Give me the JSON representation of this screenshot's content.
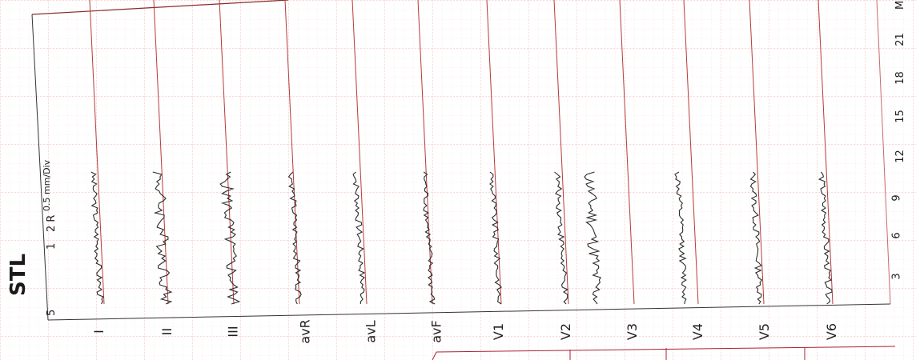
{
  "report": {
    "title": "STL",
    "scale_text": "0.5 mm/Div",
    "marks": [
      "5",
      "1",
      "2 R"
    ]
  },
  "leads": [
    "I",
    "II",
    "III",
    "avR",
    "avL",
    "avF",
    "V1",
    "V2",
    "V3",
    "V4",
    "V5",
    "V6"
  ],
  "time_scale": {
    "ticks": [
      "3",
      "6",
      "9",
      "12",
      "15",
      "18",
      "21"
    ],
    "unit": "M"
  },
  "colors": {
    "grid": "#f4a7a7",
    "grid_minor": "#f9d4d4",
    "frame": "#b73a3a",
    "trace": "#2b2b2b"
  }
}
